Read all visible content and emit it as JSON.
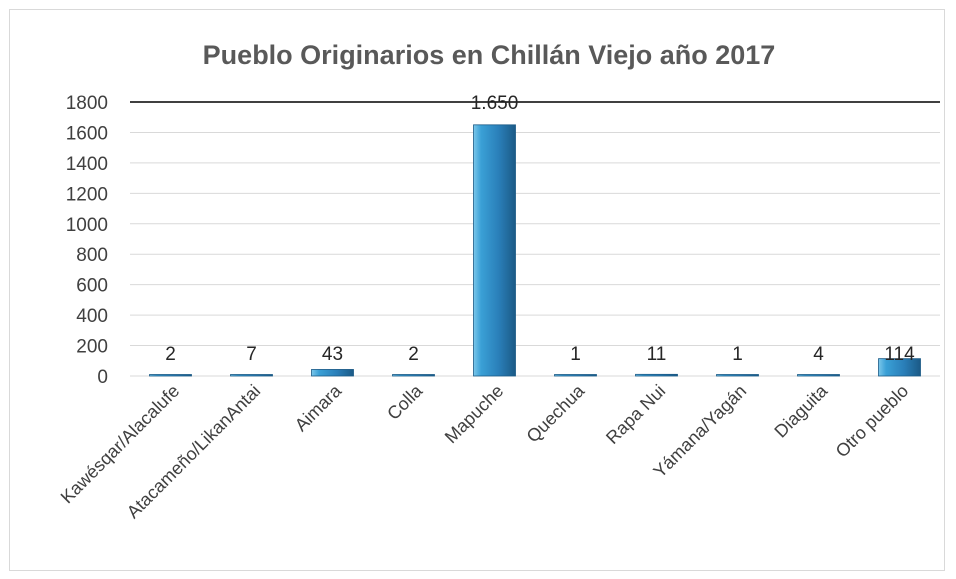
{
  "chart_data": {
    "type": "bar",
    "title": "Pueblo Originarios en Chillán Viejo año 2017",
    "xlabel": "",
    "ylabel": "",
    "categories": [
      "Kawésqar/Alacalufe",
      "Atacameño/LikanAntai",
      "Aimara",
      "Colla",
      "Mapuche",
      "Quechua",
      "Rapa Nui",
      "Yámana/Yagán",
      "Diaguita",
      "Otro pueblo"
    ],
    "values": [
      2,
      7,
      43,
      2,
      1650,
      1,
      11,
      1,
      4,
      114
    ],
    "data_labels": [
      "2",
      "7",
      "43",
      "2",
      "1.650",
      "1",
      "11",
      "1",
      "4",
      "114"
    ],
    "ylim": [
      0,
      1800
    ],
    "yticks": [
      0,
      200,
      400,
      600,
      800,
      1000,
      1200,
      1400,
      1600,
      1800
    ],
    "grid": true,
    "legend": "none",
    "colors": {
      "bar_fill": "#2e86c1",
      "bar_dark": "#1f5f8b",
      "bar_light": "#8fd3f4"
    }
  }
}
